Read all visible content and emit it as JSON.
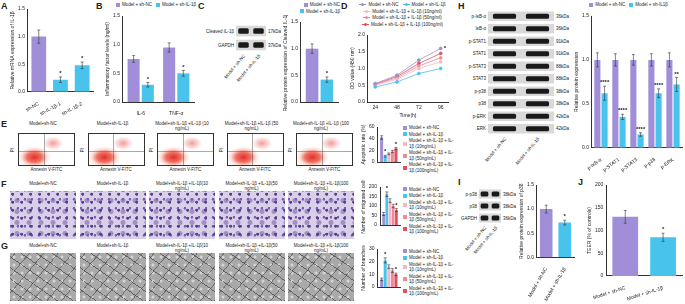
{
  "chart_data": [
    {
      "panel": "A",
      "type": "bar",
      "y_label": "Relative mRNA expression of IL-1β",
      "categories": [
        "sh-NC",
        "sh-IL-1β-1",
        "sh-IL-1β-2"
      ],
      "values": [
        1.0,
        0.22,
        0.48
      ],
      "errors": [
        0.12,
        0.05,
        0.06
      ],
      "colors": [
        "#a08fd8",
        "#48c3ec",
        "#48c3ec"
      ],
      "ylim": [
        0,
        1.5
      ],
      "yticks": [
        {
          "value": 0,
          "label": "0.0"
        },
        {
          "value": 0.5,
          "label": "0.5"
        },
        {
          "value": 1,
          "label": "1.0"
        },
        {
          "value": 1.5,
          "label": "1.5"
        }
      ],
      "grid": false,
      "annotations": [
        {
          "text": "*",
          "category": 1
        },
        {
          "text": "*",
          "category": 2
        }
      ]
    },
    {
      "panel": "B",
      "type": "bar",
      "y_label": "Inflammatory factor levels (ng/ml)",
      "categories": [
        "IL-6",
        "TNF-α"
      ],
      "series": [
        {
          "name": "Model + sh-NC",
          "color": "#a08fd8",
          "values": [
            0.75,
            0.95
          ],
          "errors": [
            0.06,
            0.08
          ]
        },
        {
          "name": "Model + sh-IL-1β",
          "color": "#48c3ec",
          "values": [
            0.3,
            0.5
          ],
          "errors": [
            0.04,
            0.05
          ]
        }
      ],
      "ylim": [
        0,
        1.5
      ],
      "yticks": [
        {
          "value": 0,
          "label": "0.0"
        },
        {
          "value": 0.5,
          "label": "0.5"
        },
        {
          "value": 1,
          "label": "1.0"
        },
        {
          "value": 1.5,
          "label": "1.5"
        }
      ],
      "grid": false,
      "legend": "top-right",
      "annotations": [
        {
          "text": "*",
          "category": 0,
          "series": 1
        },
        {
          "text": "*",
          "category": 1,
          "series": 1
        }
      ]
    },
    {
      "type": "bar",
      "y_label": "Relative protein expression of Cleaved IL-1β",
      "categories": [
        null
      ],
      "series": [
        {
          "name": "Model + sh-NC",
          "color": "#a08fd8",
          "values": [
            1.0
          ],
          "errors": [
            0.09
          ]
        },
        {
          "name": "Model + sh-IL-1β",
          "color": "#48c3ec",
          "values": [
            0.42
          ],
          "errors": [
            0.05
          ]
        }
      ],
      "ylim": [
        0,
        1.5
      ],
      "yticks": [
        {
          "value": 0,
          "label": "0.0"
        },
        {
          "value": 0.5,
          "label": "0.5"
        },
        {
          "value": 1,
          "label": "1.0"
        },
        {
          "value": 1.5,
          "label": "1.5"
        }
      ],
      "grid": false,
      "legend": "top-right",
      "annotations": [
        {
          "text": "*",
          "category": 0,
          "series": 1
        }
      ]
    },
    {
      "panel": "D",
      "type": "line",
      "x_label": "Time(h)",
      "y_label": "OD value (450 nm)",
      "x": [
        24,
        48,
        72,
        96
      ],
      "xlim": [
        16,
        104
      ],
      "xticks": [
        24,
        48,
        72,
        96
      ],
      "series": [
        {
          "name": "Model + sh-NC",
          "color": "#9a90c8",
          "values": [
            0.55,
            0.8,
            1.25,
            1.6
          ]
        },
        {
          "name": "Model + sh-IL-1β",
          "color": "#48c3ec",
          "values": [
            0.45,
            0.6,
            0.85,
            1.0
          ]
        },
        {
          "name": "Model + sh-IL-1β + IL-1β (10ng/ml)",
          "color": "#f6b6c6",
          "values": [
            0.5,
            0.68,
            1.0,
            1.2
          ]
        },
        {
          "name": "Model + sh-IL-1β + IL-1β (50ng/ml)",
          "color": "#f08a98",
          "values": [
            0.52,
            0.72,
            1.08,
            1.32
          ]
        },
        {
          "name": "Model + sh-IL-1β + IL-1β (100ng/ml)",
          "color": "#e2505e",
          "values": [
            0.53,
            0.76,
            1.15,
            1.45
          ]
        }
      ],
      "ylim": [
        0,
        2
      ],
      "yticks": [
        {
          "value": 0,
          "label": "0.0"
        },
        {
          "value": 0.5,
          "label": "0.5"
        },
        {
          "value": 1,
          "label": "1.0"
        },
        {
          "value": 1.5,
          "label": "1.5"
        },
        {
          "value": 2,
          "label": "2.0"
        }
      ],
      "grid": false,
      "legend": "top",
      "marker": "circle",
      "line_style": "solid",
      "annotations": [
        {
          "text": "*",
          "category": 3,
          "series": 0
        }
      ]
    },
    {
      "type": "bar",
      "y_label": "Apoptotic rate (%)",
      "categories": [
        null
      ],
      "series": [
        {
          "name": "Model + sh-NC",
          "color": "#a08fd8",
          "values": [
            42
          ],
          "errors": [
            3
          ]
        },
        {
          "name": "Model + sh-IL-1β",
          "color": "#48c3ec",
          "values": [
            10
          ],
          "errors": [
            1.5
          ]
        },
        {
          "name": "Model + sh-IL-1β + IL-1β (10ng/mL)",
          "color": "#f6b6c6",
          "values": [
            14
          ],
          "errors": [
            1.5
          ]
        },
        {
          "name": "Model + sh-IL-1β + IL-1β (50ng/mL)",
          "color": "#f08a98",
          "values": [
            18
          ],
          "errors": [
            2
          ]
        },
        {
          "name": "Model + sh-IL-1β + IL-1β (100ng/mL)",
          "color": "#e2505e",
          "values": [
            23
          ],
          "errors": [
            2
          ]
        }
      ],
      "ylim": [
        0,
        60
      ],
      "yticks": [
        0,
        20,
        40,
        60
      ],
      "grid": false,
      "legend": "right",
      "annotations": [
        {
          "text": "*",
          "category": 0,
          "series": 1
        },
        {
          "text": "*",
          "category": 0,
          "series": 4
        }
      ]
    },
    {
      "type": "bar",
      "y_label": "Number of migrated cells",
      "categories": [
        null
      ],
      "series": [
        {
          "name": "Model + sh-NC",
          "color": "#a08fd8",
          "values": [
            58
          ],
          "errors": [
            8
          ]
        },
        {
          "name": "Model + sh-IL-1β",
          "color": "#48c3ec",
          "values": [
            162
          ],
          "errors": [
            12
          ]
        },
        {
          "name": "Model + sh-IL-1β + IL-1β (10ng/mL)",
          "color": "#f6b6c6",
          "values": [
            128
          ],
          "errors": [
            10
          ]
        },
        {
          "name": "Model + sh-IL-1β + IL-1β (50ng/mL)",
          "color": "#f08a98",
          "values": [
            100
          ],
          "errors": [
            9
          ]
        },
        {
          "name": "Model + sh-IL-1β + IL-1β (100ng/mL)",
          "color": "#e2505e",
          "values": [
            78
          ],
          "errors": [
            8
          ]
        }
      ],
      "ylim": [
        0,
        200
      ],
      "yticks": [
        0,
        50,
        100,
        150,
        200
      ],
      "grid": false,
      "legend": "right",
      "annotations": [
        {
          "text": "*",
          "category": 0,
          "series": 1
        },
        {
          "text": "*",
          "category": 0,
          "series": 4
        }
      ]
    },
    {
      "type": "bar",
      "y_label": "Number of branches",
      "categories": [
        null
      ],
      "series": [
        {
          "name": "Model + sh-NC",
          "color": "#a08fd8",
          "values": [
            6
          ],
          "errors": [
            1
          ]
        },
        {
          "name": "Model + sh-IL-1β",
          "color": "#48c3ec",
          "values": [
            21
          ],
          "errors": [
            2
          ]
        },
        {
          "name": "Model + sh-IL-1β + IL-1β (10ng/mL)",
          "color": "#f6b6c6",
          "values": [
            16
          ],
          "errors": [
            1.5
          ]
        },
        {
          "name": "Model + sh-IL-1β + IL-1β (50ng/mL)",
          "color": "#f08a98",
          "values": [
            13
          ],
          "errors": [
            1.5
          ]
        },
        {
          "name": "Model + sh-IL-1β + IL-1β (100ng/mL)",
          "color": "#e2505e",
          "values": [
            10
          ],
          "errors": [
            1
          ]
        }
      ],
      "ylim": [
        0,
        30
      ],
      "yticks": [
        0,
        10,
        20,
        30
      ],
      "grid": false,
      "legend": "right",
      "annotations": [
        {
          "text": "*",
          "category": 0,
          "series": 1
        },
        {
          "text": "*",
          "category": 0,
          "series": 4
        }
      ]
    },
    {
      "type": "bar",
      "y_label": "Relative protein expression",
      "categories": [
        "p-IκB-α",
        "p-STAT1",
        "p-STAT3",
        "p-p38",
        "p-ERK"
      ],
      "series": [
        {
          "name": "Model + sh-NC",
          "color": "#a08fd8",
          "values": [
            1.0,
            1.0,
            1.0,
            1.0,
            1.0
          ],
          "errors": [
            0.08,
            0.07,
            0.06,
            0.07,
            0.08
          ]
        },
        {
          "name": "Model + sh-IL1β",
          "color": "#48c3ec",
          "values": [
            0.62,
            0.35,
            0.15,
            0.62,
            0.72
          ],
          "errors": [
            0.08,
            0.03,
            0.02,
            0.05,
            0.08
          ]
        }
      ],
      "ylim": [
        0,
        1.5
      ],
      "yticks": [
        {
          "value": 0,
          "label": "0.0"
        },
        {
          "value": 0.5,
          "label": "0.5"
        },
        {
          "value": 1,
          "label": "1.0"
        },
        {
          "value": 1.5,
          "label": "1.5"
        }
      ],
      "grid": false,
      "legend": "top",
      "annotations": [
        {
          "text": "****",
          "category": 0,
          "series": 1
        },
        {
          "text": "****",
          "category": 1,
          "series": 1
        },
        {
          "text": "****",
          "category": 2,
          "series": 1
        },
        {
          "text": "****",
          "category": 3,
          "series": 1
        },
        {
          "text": "**",
          "category": 4,
          "series": 1
        }
      ]
    },
    {
      "type": "bar",
      "y_label": "Relative protein expression of p38",
      "categories": [
        "Model + sh-NC",
        "Model + sh-IL-1β"
      ],
      "values": [
        1.0,
        0.72
      ],
      "errors": [
        0.08,
        0.05
      ],
      "colors": [
        "#a08fd8",
        "#48c3ec"
      ],
      "ylim": [
        0,
        1.5
      ],
      "yticks": [
        {
          "value": 0,
          "label": "0.0"
        },
        {
          "value": 0.5,
          "label": "0.5"
        },
        {
          "value": 1,
          "label": "1.0"
        },
        {
          "value": 1.5,
          "label": "1.5"
        }
      ],
      "grid": false,
      "annotations": [
        {
          "text": "*",
          "category": 1
        }
      ]
    },
    {
      "panel": "J",
      "type": "bar",
      "y_label": "TEER (% of controls)",
      "categories": [
        "Model + sh-NC",
        "Model + sh-IL-1β"
      ],
      "values": [
        130,
        85
      ],
      "errors": [
        14,
        9
      ],
      "colors": [
        "#a08fd8",
        "#48c3ec"
      ],
      "ylim": [
        0,
        200
      ],
      "yticks": [
        0,
        50,
        100,
        150,
        200
      ],
      "grid": false,
      "annotations": [
        {
          "text": "*",
          "category": 1
        }
      ]
    }
  ],
  "blots": [
    {
      "panel": "C",
      "lanes": [
        "Model + sh-NC",
        "Model + sh-IL-1β"
      ],
      "rows": [
        {
          "label": "Cleaved IL-1β",
          "size": "17kDa"
        },
        {
          "label": "GAPDH",
          "size": "37kDa"
        }
      ]
    },
    {
      "panel": "H",
      "lanes": [
        "Model + sh-NC",
        "Model + sh-IL-1β"
      ],
      "rows": [
        {
          "label": "p-IκB-α",
          "size": "36kDa"
        },
        {
          "label": "IκB-α",
          "size": "36kDa"
        },
        {
          "label": "p-STAT1",
          "size": "91kDa"
        },
        {
          "label": "STAT1",
          "size": "91kDa"
        },
        {
          "label": "p-STAT3",
          "size": "88kDa"
        },
        {
          "label": "STAT3",
          "size": "88kDa"
        },
        {
          "label": "p-p38",
          "size": "38kDa"
        },
        {
          "label": "p38",
          "size": "38kDa"
        },
        {
          "label": "p-ERK",
          "size": "42kDa"
        },
        {
          "label": "ERK",
          "size": "42kDa"
        }
      ]
    },
    {
      "panel": "I",
      "lanes": [
        "Model + sh-NC",
        "Model + sh-IL-1β"
      ],
      "rows": [
        {
          "label": "p-p38",
          "size": "38kDa"
        },
        {
          "label": "p38",
          "size": "38kDa"
        },
        {
          "label": "GAPDH",
          "size": "36kDa"
        }
      ]
    }
  ],
  "flow": {
    "panel": "E",
    "x_label": "Annexin V-FITC",
    "y_label": "PI",
    "plots": [
      "Model+sh-NC",
      "Model+sh-IL-1β",
      "Model+sh-IL-1β +IL-1β (10 ng/mL)",
      "Model+sh-IL-1β +IL-1β (50 ng/mL)",
      "Model+sh-IL-1β +IL-1β (100 ng/mL)"
    ]
  },
  "images": [
    {
      "panel": "F",
      "labels": [
        "Model+sh-NC",
        "Model+sh-IL-1β",
        "Model+sh-IL-1β +IL-1β(10 ng/mL)",
        "Model+sh-IL-1β +IL-1β(50 ng/mL)",
        "Model+sh-IL-1β +IL-1β(100 ng/mL)"
      ]
    },
    {
      "panel": "G",
      "labels": [
        "Model+sh-NC",
        "Model+sh-IL-1β",
        "Model+sh-IL-1β +IL-1β(10 ng/mL)",
        "Model+sh-IL-1β +IL-1β(50 ng/mL)",
        "Model+sh-IL-1β +IL-1β(100 ng/mL)"
      ]
    }
  ]
}
